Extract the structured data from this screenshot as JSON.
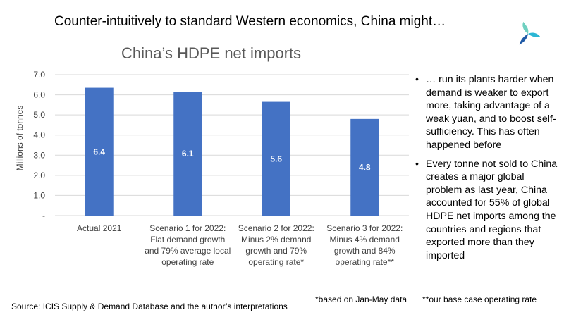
{
  "slide": {
    "title": "Counter-intuitively to standard Western economics, China might…"
  },
  "chart_data": {
    "type": "bar",
    "title": "China’s HDPE net imports",
    "ylabel": "Millions of tonnes",
    "xlabel": "",
    "ylim": [
      0,
      7
    ],
    "y_ticks": [
      "-",
      "1.0",
      "2.0",
      "3.0",
      "4.0",
      "5.0",
      "6.0",
      "7.0"
    ],
    "categories": [
      [
        "Actual 2021"
      ],
      [
        "Scenario 1 for 2022:",
        "Flat demand growth",
        "and 79% average local",
        "operating rate"
      ],
      [
        "Scenario 2 for 2022:",
        "Minus 2% demand",
        "growth and 79%",
        "operating rate*"
      ],
      [
        "Scenario 3 for 2022:",
        "Minus 4% demand",
        "growth and 84%",
        "operating rate**"
      ]
    ],
    "values": [
      6.35,
      6.15,
      5.65,
      4.8
    ],
    "data_labels": [
      "6.4",
      "6.1",
      "5.6",
      "4.8"
    ],
    "bar_color": "#4472c4",
    "grid": true
  },
  "bullets": [
    "… run its plants harder when demand is weaker to export more, taking advantage of a weak yuan, and to boost self-sufficiency. This has often happened before",
    "Every tonne not sold to China creates a major global problem as last year, China accounted for  55% of global HDPE net imports among the countries and regions that exported more than they imported"
  ],
  "bullet_char": "•",
  "notes": {
    "note_1": "*based on Jan-May data",
    "note_2": "**our base case operating rate"
  },
  "source": "Source: ICIS Supply & Demand Database and the author’s interpretations",
  "logo": {
    "icon": "icis-swirl-logo",
    "colors": [
      "#2bb6d4",
      "#6fd0c0",
      "#1f5aa6"
    ]
  }
}
